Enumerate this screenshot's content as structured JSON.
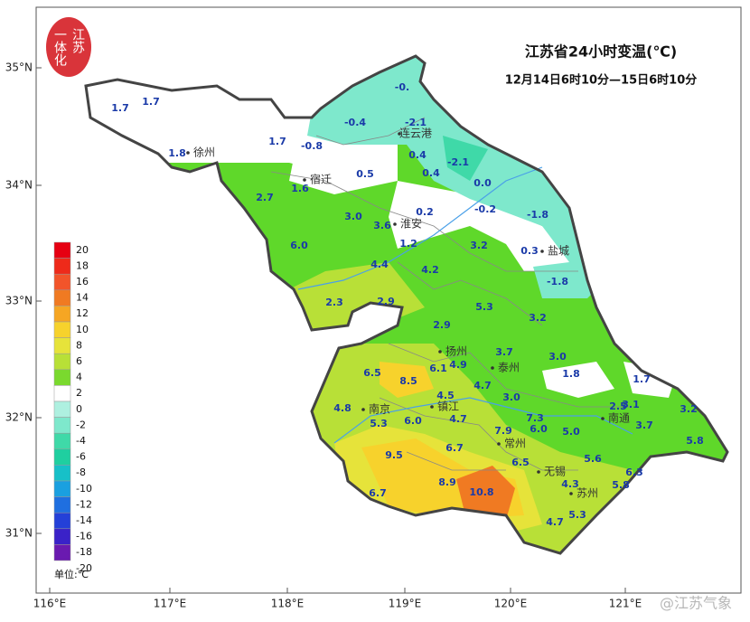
{
  "title": "江苏省24小时变温(℃)",
  "subtitle": "12月14日6时10分—15日6时10分",
  "logo": {
    "line1": "江苏",
    "line2": "一体化"
  },
  "watermark": "@江苏气象",
  "lat_labels": [
    "35°N",
    "34°N",
    "33°N",
    "32°N",
    "31°N"
  ],
  "lon_labels": [
    "116°E",
    "117°E",
    "118°E",
    "119°E",
    "120°E",
    "121°E"
  ],
  "legend": {
    "ticks": [
      20,
      18,
      16,
      14,
      12,
      10,
      8,
      6,
      4,
      2,
      0,
      -2,
      -4,
      -6,
      -8,
      -10,
      -12,
      -14,
      -16,
      -18,
      -20
    ],
    "colors": [
      "#e60012",
      "#ee2a1a",
      "#f2542a",
      "#f07a22",
      "#f6a623",
      "#f7d22c",
      "#e6e33a",
      "#b8e037",
      "#7ad92e",
      "#ffffff",
      "#aef0e0",
      "#7ee8cc",
      "#3fd9a8",
      "#1fcfa0",
      "#17c0c8",
      "#1aa0e0",
      "#1f6fe0",
      "#2440d8",
      "#3a22c8",
      "#6a1ab0"
    ],
    "unit": "单位:℃"
  },
  "cities": [
    "徐州",
    "连云港",
    "宿迁",
    "淮安",
    "盐城",
    "扬州",
    "泰州",
    "南京",
    "镇江",
    "常州",
    "南通",
    "无锡",
    "苏州"
  ],
  "stations": [
    "-0.",
    "-0.4",
    "-2.1",
    "-0.8",
    "1.7",
    "1.7",
    "1.7",
    "1.8",
    "0.4",
    "0.4",
    "-2.1",
    "0.5",
    "1.6",
    "0.0",
    "2.7",
    "-0.2",
    "-1.8",
    "3.0",
    "3.6",
    "0.2",
    "6.0",
    "1.2",
    "3.2",
    "0.3",
    "-1.8",
    "4.4",
    "4.2",
    "2.3",
    "2.9",
    "5.3",
    "3.2",
    "2.9",
    "3.7",
    "3.0",
    "6.5",
    "8.5",
    "6.1",
    "4.9",
    "1.8",
    "1.7",
    "4.7",
    "4.5",
    "3.0",
    "2.5",
    "3.1",
    "3.2",
    "4.8",
    "5.3",
    "6.0",
    "4.7",
    "7.3",
    "6.0",
    "5.0",
    "7.9",
    "3.7",
    "5.8",
    "9.5",
    "6.7",
    "5.6",
    "6.3",
    "6.5",
    "8.9",
    "4.3",
    "5.8",
    "6.7",
    "10.8",
    "5.3",
    "4.7"
  ]
}
